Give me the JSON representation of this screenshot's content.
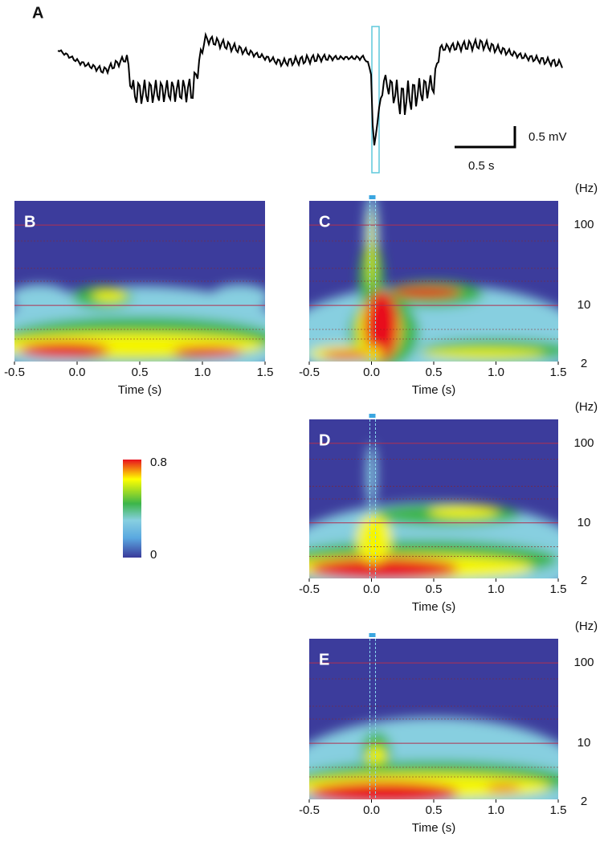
{
  "figure": {
    "panel_a": {
      "label": "A",
      "scale_bar": {
        "voltage": "0.5 mV",
        "time": "0.5 s"
      }
    },
    "spectrograms": [
      {
        "label": "B",
        "xlabel": "Time (s)",
        "xlim": [
          -0.5,
          1.5
        ],
        "xticks": [
          -0.5,
          {
            "value": 0,
            "label": "0.0"
          },
          0.5,
          {
            "value": 1,
            "label": "1.0"
          },
          1.5
        ],
        "ylim": [
          2,
          200
        ],
        "log_y": true
      },
      {
        "label": "C",
        "xlabel": "Time (s)",
        "xlim": [
          -0.5,
          1.5
        ],
        "xticks": [
          -0.5,
          {
            "value": 0,
            "label": "0.0"
          },
          0.5,
          {
            "value": 1,
            "label": "1.0"
          },
          1.5
        ],
        "ylim": [
          2,
          200
        ],
        "log_y": true,
        "yticks": [
          100,
          10,
          2
        ],
        "y_unit": "(Hz)"
      },
      {
        "label": "D",
        "xlabel": "Time (s)",
        "xlim": [
          -0.5,
          1.5
        ],
        "xticks": [
          -0.5,
          {
            "value": 0,
            "label": "0.0"
          },
          0.5,
          {
            "value": 1,
            "label": "1.0"
          },
          1.5
        ],
        "ylim": [
          2,
          200
        ],
        "log_y": true,
        "yticks": [
          100,
          10,
          2
        ],
        "y_unit": "(Hz)"
      },
      {
        "label": "E",
        "xlabel": "Time (s)",
        "xlim": [
          -0.5,
          1.5
        ],
        "xticks": [
          -0.5,
          {
            "value": 0,
            "label": "0.0"
          },
          0.5,
          {
            "value": 1,
            "label": "1.0"
          },
          1.5
        ],
        "ylim": [
          2,
          200
        ],
        "log_y": true,
        "yticks": [
          100,
          10,
          2
        ],
        "y_unit": "(Hz)"
      }
    ],
    "colorbar": {
      "lim": [
        0,
        0.8
      ],
      "ticks": [
        0.8,
        0
      ]
    }
  }
}
